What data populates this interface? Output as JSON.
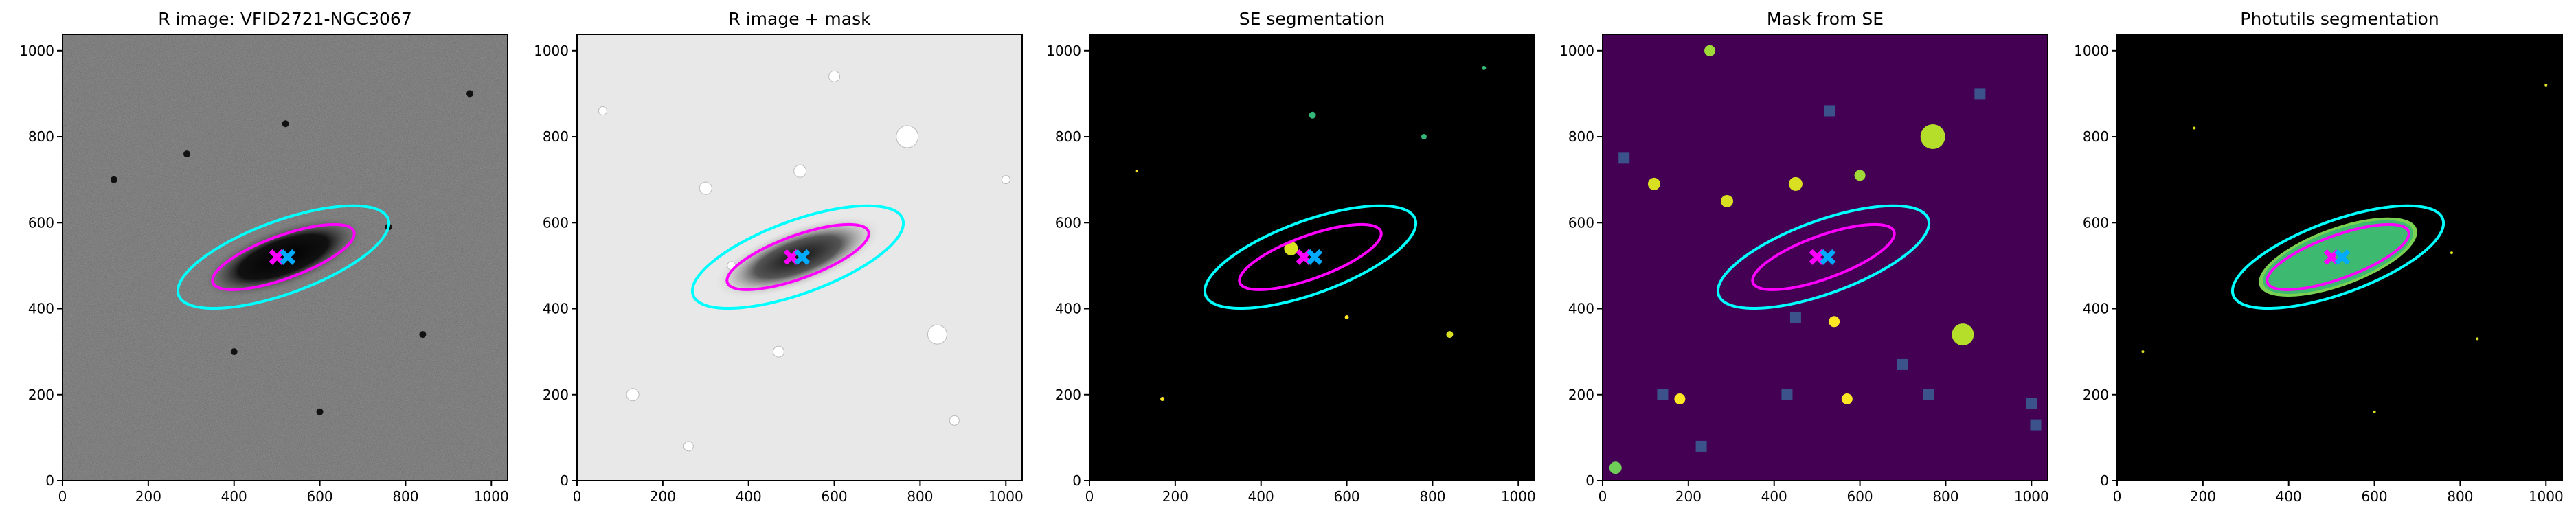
{
  "chart_data": [
    {
      "type": "image",
      "title": "R image: VFID2721-NGC3067",
      "xlim": [
        0,
        1038
      ],
      "ylim": [
        0,
        1038
      ],
      "xticks": [
        0,
        200,
        400,
        600,
        800,
        1000
      ],
      "yticks": [
        0,
        200,
        400,
        600,
        800,
        1000
      ]
    },
    {
      "type": "image",
      "title": "R image + mask",
      "xlim": [
        0,
        1038
      ],
      "ylim": [
        0,
        1038
      ],
      "xticks": [
        0,
        200,
        400,
        600,
        800,
        1000
      ],
      "yticks": [
        0,
        200,
        400,
        600,
        800,
        1000
      ]
    },
    {
      "type": "image",
      "title": "SE segmentation",
      "xlim": [
        0,
        1038
      ],
      "ylim": [
        0,
        1038
      ],
      "xticks": [
        0,
        200,
        400,
        600,
        800,
        1000
      ],
      "yticks": [
        0,
        200,
        400,
        600,
        800,
        1000
      ]
    },
    {
      "type": "image",
      "title": "Mask from SE",
      "xlim": [
        0,
        1038
      ],
      "ylim": [
        0,
        1038
      ],
      "xticks": [
        0,
        200,
        400,
        600,
        800,
        1000
      ],
      "yticks": [
        0,
        200,
        400,
        600,
        800,
        1000
      ]
    },
    {
      "type": "image",
      "title": "Photutils segmentation",
      "xlim": [
        0,
        1038
      ],
      "ylim": [
        0,
        1038
      ],
      "xticks": [
        0,
        200,
        400,
        600,
        800,
        1000
      ],
      "yticks": [
        0,
        200,
        400,
        600,
        800,
        1000
      ]
    }
  ]
}
